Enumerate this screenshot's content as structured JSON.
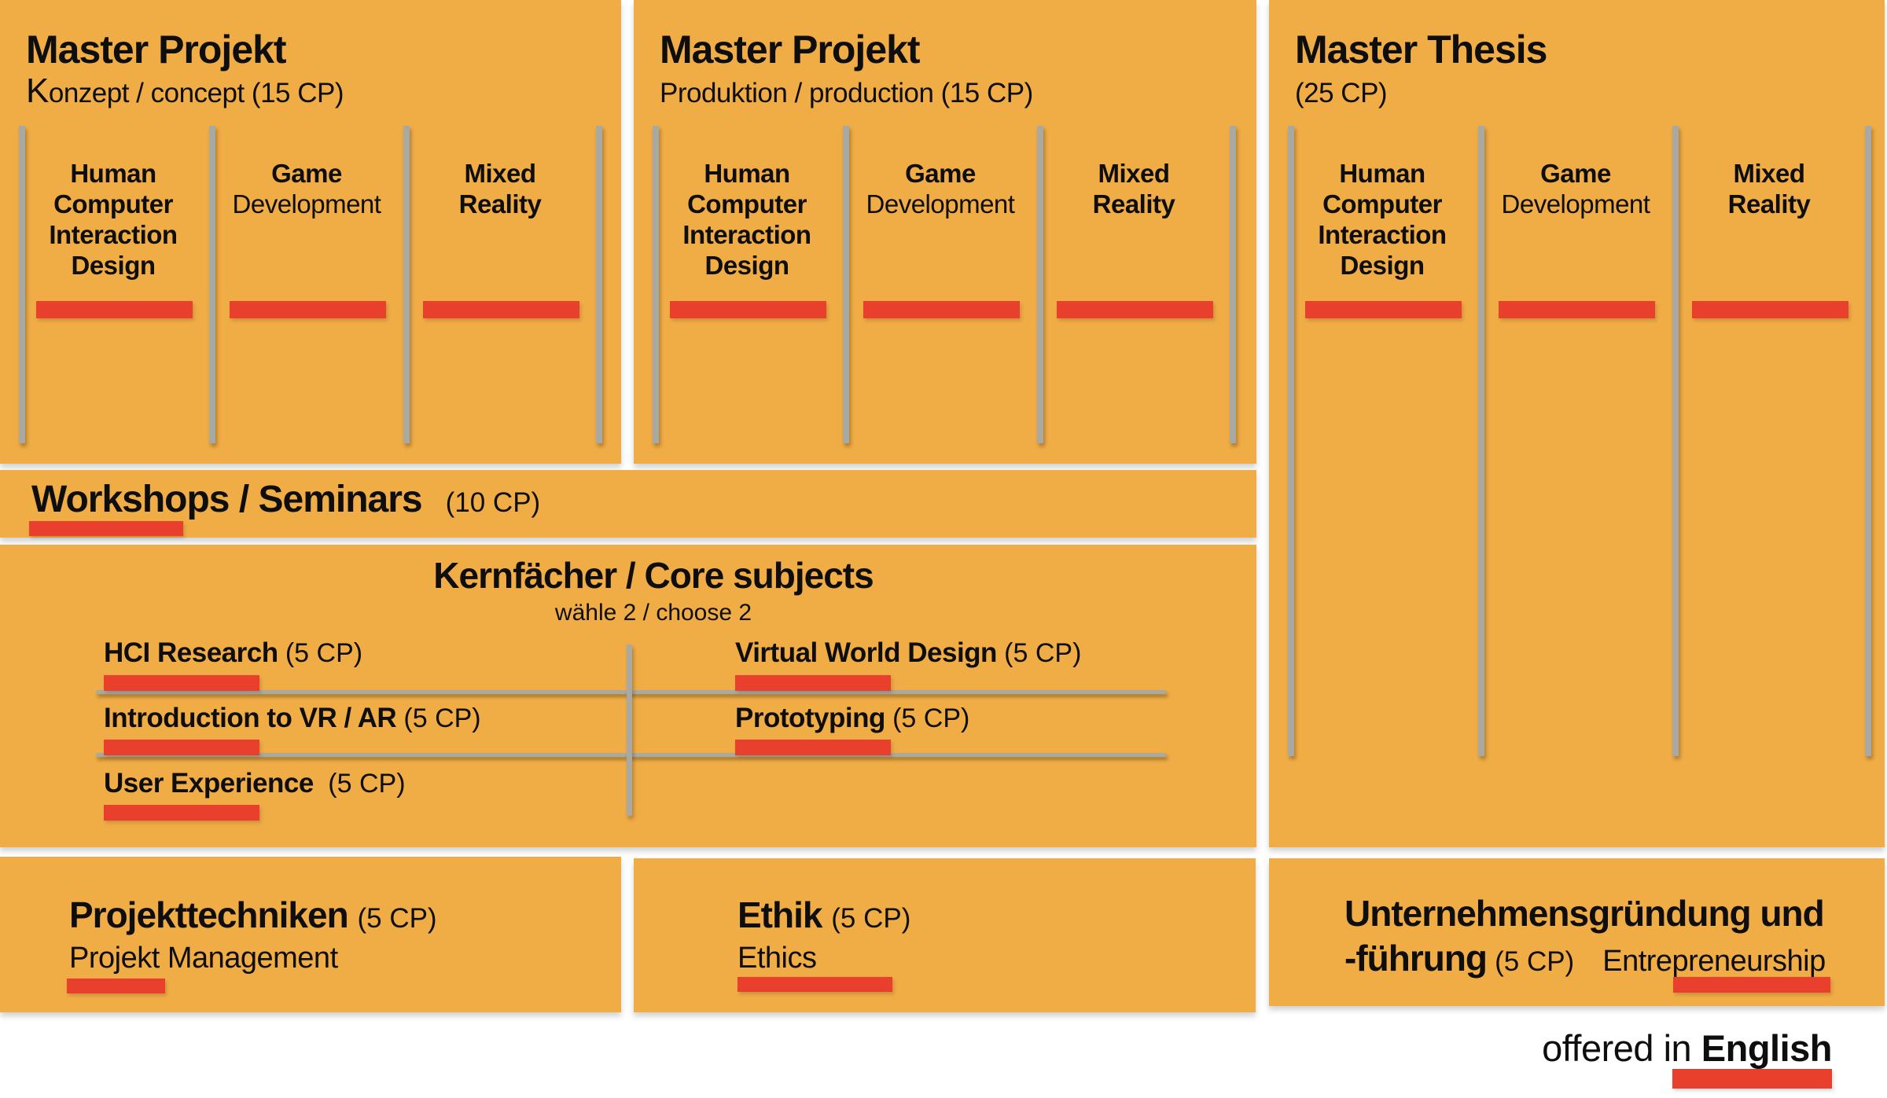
{
  "colors": {
    "panel_bg": "#F0AC45",
    "accent_red": "#E8402C",
    "divider_gray": "#A9A9A3",
    "text": "#0E0E0E",
    "page_bg": "#FFFFFF"
  },
  "projects": [
    {
      "title": "Master Projekt",
      "subtitle_initial": "K",
      "subtitle": "onzept / concept (15 CP)",
      "columns": [
        {
          "bold": "Human\nComputer\nInteraction\nDesign",
          "regular": ""
        },
        {
          "bold": "Game",
          "regular": "Development"
        },
        {
          "bold": "Mixed\nReality",
          "regular": ""
        }
      ]
    },
    {
      "title": "Master Projekt",
      "subtitle_initial": "",
      "subtitle": "Produktion / production (15 CP)",
      "columns": [
        {
          "bold": "Human\nComputer\nInteraction\nDesign",
          "regular": ""
        },
        {
          "bold": "Game",
          "regular": "Development"
        },
        {
          "bold": "Mixed\nReality",
          "regular": ""
        }
      ]
    },
    {
      "title": "Master Thesis",
      "subtitle_initial": "",
      "subtitle": "(25 CP)",
      "columns": [
        {
          "bold": "Human\nComputer\nInteraction\nDesign",
          "regular": ""
        },
        {
          "bold": "Game",
          "regular": "Development"
        },
        {
          "bold": "Mixed\nReality",
          "regular": ""
        }
      ]
    }
  ],
  "workshops": {
    "title": "Workshops / Seminars",
    "credits": "(10 CP)"
  },
  "core": {
    "title": "Kernfächer / Core subjects",
    "subtitle": "wähle 2 / choose 2",
    "left_courses": [
      {
        "name": "HCI Research",
        "credits": "(5 CP)"
      },
      {
        "name": "Introduction to VR / AR",
        "credits": "(5 CP)"
      },
      {
        "name": "User Experience",
        "credits": "(5 CP)"
      }
    ],
    "right_courses": [
      {
        "name": "Virtual World Design",
        "credits": "(5 CP)"
      },
      {
        "name": "Prototyping",
        "credits": "(5 CP)"
      }
    ]
  },
  "bottom": {
    "projekttechniken": {
      "title": "Projekttechniken",
      "credits": "(5 CP)",
      "subtitle": "Projekt Management"
    },
    "ethik": {
      "title": "Ethik",
      "credits": "(5 CP)",
      "subtitle": "Ethics"
    },
    "unternehmensgruendung": {
      "title_line1": "Unternehmensgründung und",
      "title_line2_bold": "-führung",
      "credits": "(5 CP)",
      "subtitle": "Entrepreneurship"
    }
  },
  "footer": {
    "prefix": "offered in ",
    "language": "English"
  }
}
